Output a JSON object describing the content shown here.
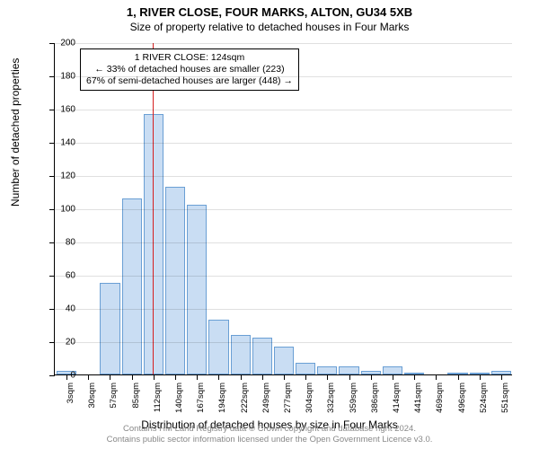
{
  "titles": {
    "main": "1, RIVER CLOSE, FOUR MARKS, ALTON, GU34 5XB",
    "sub": "Size of property relative to detached houses in Four Marks"
  },
  "chart": {
    "type": "histogram",
    "ylabel": "Number of detached properties",
    "xlabel": "Distribution of detached houses by size in Four Marks",
    "ylim": [
      0,
      200
    ],
    "ytick_step": 20,
    "bar_fill": "#c9ddf3",
    "bar_stroke": "#6a9fd4",
    "background": "#ffffff",
    "grid_color": "#000000",
    "grid_opacity": 0.12,
    "x_categories": [
      "3sqm",
      "30sqm",
      "57sqm",
      "85sqm",
      "112sqm",
      "140sqm",
      "167sqm",
      "194sqm",
      "222sqm",
      "249sqm",
      "277sqm",
      "304sqm",
      "332sqm",
      "359sqm",
      "386sqm",
      "414sqm",
      "441sqm",
      "469sqm",
      "496sqm",
      "524sqm",
      "551sqm"
    ],
    "values": [
      2,
      0,
      55,
      106,
      157,
      113,
      102,
      33,
      24,
      22,
      17,
      7,
      5,
      5,
      2,
      5,
      1,
      0,
      1,
      1,
      2
    ],
    "reference_line": {
      "color": "#d62020",
      "bin_index": 4,
      "position_in_bin": 0.45
    }
  },
  "annotation": {
    "line1": "1 RIVER CLOSE: 124sqm",
    "line2": "← 33% of detached houses are smaller (223)",
    "line3": "67% of semi-detached houses are larger (448) →"
  },
  "footer": {
    "line1": "Contains HM Land Registry data © Crown copyright and database right 2024.",
    "line2": "Contains public sector information licensed under the Open Government Licence v3.0."
  }
}
